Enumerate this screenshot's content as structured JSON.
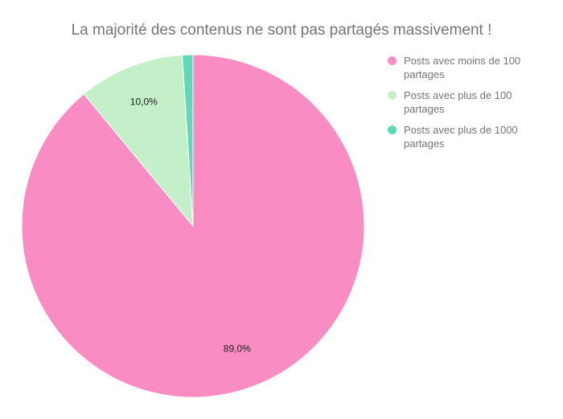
{
  "chart_data": {
    "type": "pie",
    "title": "La majorité des contenus ne sont pas partagés massivement !",
    "slices": [
      {
        "name": "Posts avec moins de 100 partages",
        "value": 89.0,
        "label": "89,0%",
        "color": "#f98dc3"
      },
      {
        "name": "Posts avec plus de 100 partages",
        "value": 10.0,
        "label": "10,0%",
        "color": "#c4f0c9"
      },
      {
        "name": "Posts avec plus de 1000 partages",
        "value": 1.0,
        "label": "",
        "color": "#5fd8b8"
      }
    ],
    "legend_position": "right"
  }
}
